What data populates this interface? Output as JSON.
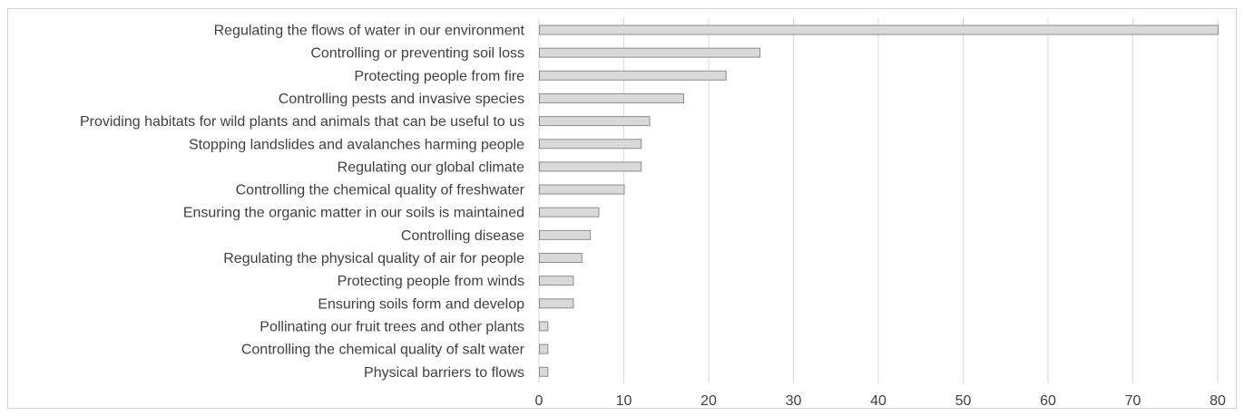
{
  "chart_data": {
    "type": "bar",
    "orientation": "horizontal",
    "categories": [
      "Regulating the flows of water in our environment",
      "Controlling or preventing soil loss",
      "Protecting people from fire",
      "Controlling pests and invasive species",
      "Providing habitats for wild plants and animals that can be useful to us",
      "Stopping landslides and avalanches harming people",
      "Regulating our global climate",
      "Controlling the chemical quality of freshwater",
      "Ensuring the organic matter in our soils is maintained",
      "Controlling disease",
      "Regulating the physical quality of air for people",
      "Protecting people from winds",
      "Ensuring soils form and develop",
      "Pollinating our fruit trees and other plants",
      "Controlling the chemical quality of salt water",
      "Physical barriers to flows"
    ],
    "values": [
      80,
      26,
      22,
      17,
      13,
      12,
      12,
      10,
      7,
      6,
      5,
      4,
      4,
      1,
      1,
      1
    ],
    "xlim": [
      0,
      80
    ],
    "x_ticks": [
      "0",
      "10",
      "20",
      "30",
      "40",
      "50",
      "60",
      "70",
      "80"
    ],
    "grid": true,
    "legend": "none",
    "title": "",
    "xlabel": "",
    "ylabel": "",
    "colors": {
      "bar_fill": "#d9d9d9",
      "bar_stroke": "#8c8c8c",
      "grid": "#d9d9d9",
      "text": "#404040"
    }
  }
}
